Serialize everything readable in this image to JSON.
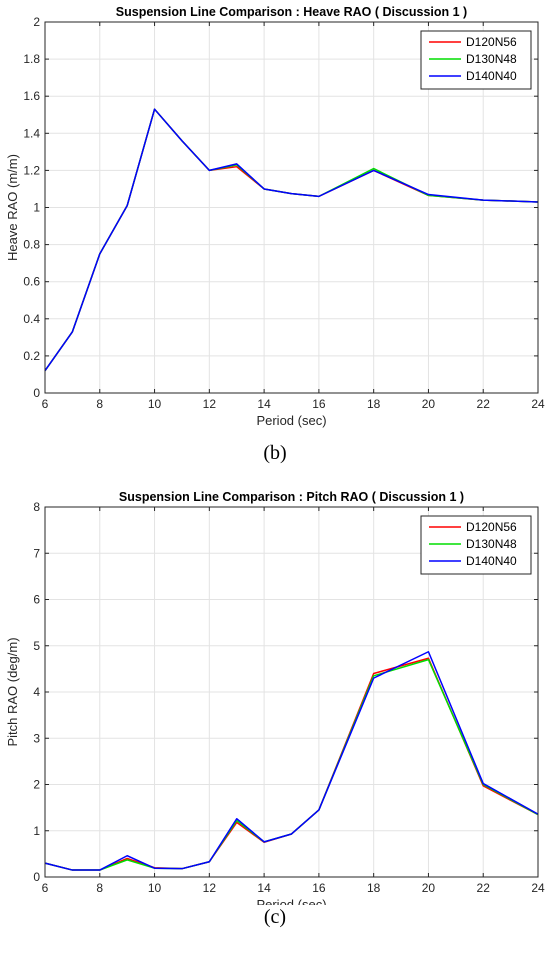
{
  "charts": [
    {
      "caption": "(b)",
      "chart_data": {
        "type": "line",
        "title": "Suspension Line Comparison : Heave RAO ( Discussion 1 )",
        "xlabel": "Period (sec)",
        "ylabel": "Heave RAO (m/m)",
        "xlim": [
          6,
          24
        ],
        "ylim": [
          0,
          2
        ],
        "xticks": [
          6,
          8,
          10,
          12,
          14,
          16,
          18,
          20,
          22,
          24
        ],
        "yticks": [
          0,
          0.2,
          0.4,
          0.6,
          0.8,
          1,
          1.2,
          1.4,
          1.6,
          1.8,
          2
        ],
        "grid": true,
        "legend_position": "top-right",
        "x": [
          6,
          7,
          8,
          9,
          10,
          11,
          12,
          13,
          14,
          15,
          16,
          18,
          20,
          22,
          24
        ],
        "series": [
          {
            "name": "D120N56",
            "color": "#ff0000",
            "values": [
              0.12,
              0.33,
              0.75,
              1.01,
              1.53,
              1.36,
              1.2,
              1.22,
              1.1,
              1.075,
              1.06,
              1.2,
              1.065,
              1.04,
              1.03
            ]
          },
          {
            "name": "D130N48",
            "color": "#00dd00",
            "values": [
              0.12,
              0.33,
              0.75,
              1.01,
              1.53,
              1.36,
              1.2,
              1.23,
              1.1,
              1.075,
              1.06,
              1.21,
              1.065,
              1.04,
              1.03
            ]
          },
          {
            "name": "D140N40",
            "color": "#0000ff",
            "values": [
              0.12,
              0.33,
              0.75,
              1.01,
              1.53,
              1.36,
              1.2,
              1.235,
              1.1,
              1.075,
              1.06,
              1.2,
              1.07,
              1.04,
              1.03
            ]
          }
        ]
      }
    },
    {
      "caption": "(c)",
      "chart_data": {
        "type": "line",
        "title": "Suspension Line Comparison : Pitch RAO ( Discussion 1 )",
        "xlabel": "Period (sec)",
        "ylabel": "Pitch RAO (deg/m)",
        "xlim": [
          6,
          24
        ],
        "ylim": [
          0,
          8
        ],
        "xticks": [
          6,
          8,
          10,
          12,
          14,
          16,
          18,
          20,
          22,
          24
        ],
        "yticks": [
          0,
          1,
          2,
          3,
          4,
          5,
          6,
          7,
          8
        ],
        "grid": true,
        "legend_position": "top-right",
        "x": [
          6,
          7,
          8,
          9,
          10,
          11,
          12,
          13,
          14,
          15,
          16,
          18,
          20,
          22,
          24
        ],
        "series": [
          {
            "name": "D120N56",
            "color": "#ff0000",
            "values": [
              0.3,
              0.15,
              0.15,
              0.4,
              0.2,
              0.18,
              0.33,
              1.18,
              0.75,
              0.93,
              1.45,
              4.4,
              4.73,
              1.97,
              1.35
            ]
          },
          {
            "name": "D130N48",
            "color": "#00dd00",
            "values": [
              0.3,
              0.15,
              0.15,
              0.37,
              0.19,
              0.18,
              0.33,
              1.22,
              0.76,
              0.93,
              1.45,
              4.35,
              4.7,
              2.0,
              1.35
            ]
          },
          {
            "name": "D140N40",
            "color": "#0000ff",
            "values": [
              0.3,
              0.15,
              0.15,
              0.46,
              0.19,
              0.18,
              0.33,
              1.26,
              0.76,
              0.93,
              1.45,
              4.3,
              4.87,
              2.02,
              1.36
            ]
          }
        ]
      }
    }
  ]
}
